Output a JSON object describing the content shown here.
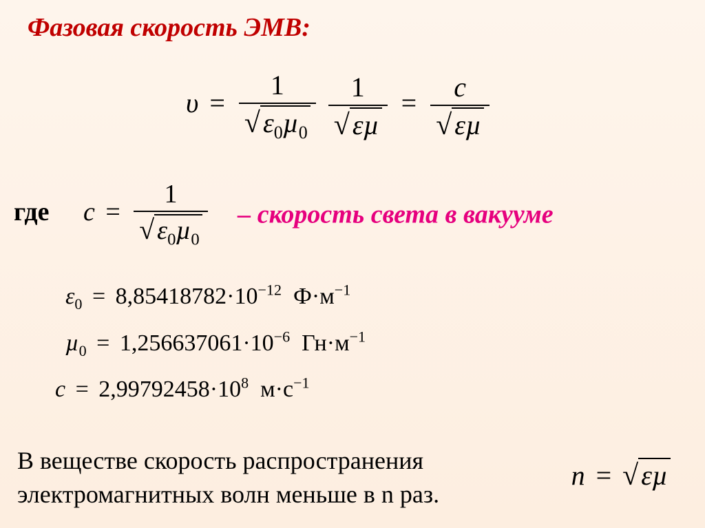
{
  "title": "Фазовая скорость ЭМВ:",
  "main_eq": {
    "lhs": "υ",
    "eq": "=",
    "f1_num": "1",
    "f1_den_e": "ε",
    "f1_den_e0": "0",
    "f1_den_mu": "µ",
    "f1_den_mu0": "0",
    "f2_num": "1",
    "f2_den_e": "ε",
    "f2_den_mu": "µ",
    "f3_num": "c",
    "f3_den_e": "ε",
    "f3_den_mu": "µ"
  },
  "where_label": "где",
  "c_eq": {
    "lhs": "c",
    "eq": "=",
    "num": "1",
    "den_e": "ε",
    "den_e0": "0",
    "den_mu": "µ",
    "den_mu0": "0"
  },
  "light_label": "– скорость света в вакууме",
  "constants": {
    "eps0": {
      "sym": "ε",
      "sub": "0",
      "eq": "=",
      "val": "8,85418782",
      "dot": "·",
      "ten": "10",
      "exp": "−12",
      "unit_a": "Ф",
      "unit_dot": "·",
      "unit_b": "м",
      "unit_exp": "−1"
    },
    "mu0": {
      "sym": "µ",
      "sub": "0",
      "eq": "=",
      "val": "1,256637061",
      "dot": "·",
      "ten": "10",
      "exp": "−6",
      "unit_a": "Гн",
      "unit_dot": "·",
      "unit_b": "м",
      "unit_exp": "−1"
    },
    "c": {
      "sym": "c",
      "eq": "=",
      "val": "2,99792458",
      "dot": "·",
      "ten": "10",
      "exp": "8",
      "unit_a": "м",
      "unit_dot": "·",
      "unit_b": "с",
      "unit_exp": "−1"
    }
  },
  "bottom_line1": "В веществе скорость распространения",
  "bottom_line2": "электромагнитных волн  меньше в n раз.",
  "n_eq": {
    "lhs": "n",
    "eq": "=",
    "e": "ε",
    "mu": "µ"
  },
  "colors": {
    "title": "#c00000",
    "accent": "#e6007e",
    "bg_top": "#fef5ec",
    "bg_bot": "#fdeee0"
  }
}
